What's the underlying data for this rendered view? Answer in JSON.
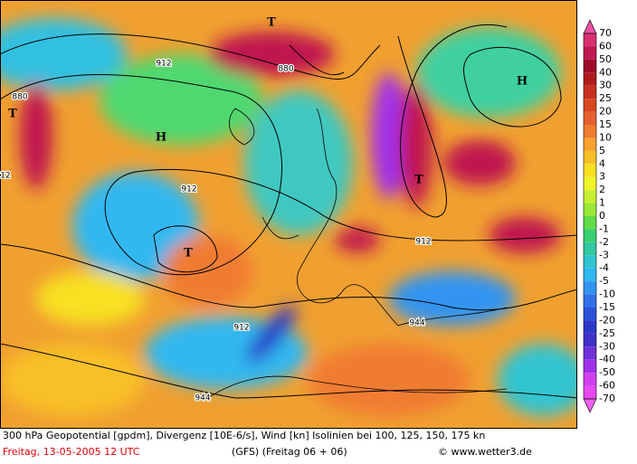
{
  "map": {
    "pressure_centers": [
      "H",
      "H",
      "T",
      "T",
      "T",
      "T"
    ],
    "contour_labels": [
      "912",
      "912",
      "912",
      "912",
      "880",
      "880",
      "944",
      "944",
      "12"
    ]
  },
  "legend": {
    "labels": [
      70,
      60,
      50,
      40,
      30,
      25,
      20,
      15,
      10,
      5,
      4,
      3,
      2,
      1,
      0,
      -1,
      -2,
      -3,
      -4,
      -5,
      -10,
      -15,
      -20,
      -25,
      -30,
      -40,
      -50,
      -60,
      -70
    ],
    "colors": [
      "#e850a0",
      "#d83070",
      "#c01850",
      "#a00c28",
      "#b01c1c",
      "#c83020",
      "#d84820",
      "#e86030",
      "#f07c30",
      "#f8a030",
      "#f8c028",
      "#f8e020",
      "#f0f428",
      "#c8f030",
      "#98e838",
      "#60dc48",
      "#38d070",
      "#30c8a0",
      "#30c4d0",
      "#30b8f0",
      "#3094f0",
      "#3070e8",
      "#2c50d8",
      "#2c38c8",
      "#4030c8",
      "#7030d8",
      "#a030e8",
      "#d040f0",
      "#e848f0",
      "#f060f0"
    ]
  },
  "footer": {
    "description": "300 hPa Geopotential [gpdm], Divergenz [10E-6/s], Wind [kn] Isolinien bei 100, 125, 150, 175 kn",
    "date": "Freitag, 13-05-2005  12 UTC",
    "model": "(GFS)  (Freitag 06 + 06)",
    "copyright": "© www.wetter3.de"
  }
}
